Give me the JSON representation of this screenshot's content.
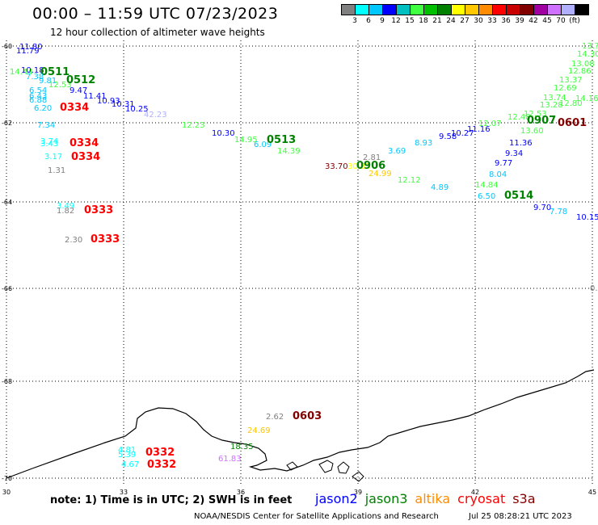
{
  "header": {
    "title": "00:00 – 11:59 UTC 07/23/2023",
    "subtitle": "12 hour collection of altimeter wave heights"
  },
  "legend": {
    "colors": [
      "#808080",
      "#00ffff",
      "#00c8ff",
      "#0000ff",
      "#00c0c0",
      "#40ff40",
      "#00c000",
      "#008000",
      "#ffff00",
      "#ffc800",
      "#ff8c00",
      "#ff0000",
      "#c80000",
      "#800000",
      "#a000a0",
      "#d070ff",
      "#b0b0ff",
      "#000000"
    ],
    "labels": [
      "3",
      "6",
      "9",
      "12",
      "15",
      "18",
      "21",
      "24",
      "27",
      "30",
      "33",
      "36",
      "39",
      "42",
      "45",
      "70",
      "(ft)"
    ]
  },
  "axes": {
    "lat_labels": [
      "-60",
      "-62",
      "-64",
      "-66",
      "-68",
      "-70"
    ],
    "lon_labels": [
      "30",
      "33",
      "36",
      "39",
      "42",
      "45"
    ]
  },
  "observations": [
    {
      "text": "11.80",
      "color": "#0000ff"
    },
    {
      "text": "11.79",
      "color": "#0000ff"
    },
    {
      "text": "14.44",
      "color": "#40ff40"
    },
    {
      "text": "10.18",
      "color": "#0000ff"
    },
    {
      "text": "0511",
      "color": "#008000",
      "bold": true
    },
    {
      "text": "7.38",
      "color": "#00c8ff"
    },
    {
      "text": "9.81",
      "color": "#00c8ff"
    },
    {
      "text": "12.53",
      "color": "#40ff40"
    },
    {
      "text": "0512",
      "color": "#008000",
      "bold": true
    },
    {
      "text": "6.54",
      "color": "#00c8ff"
    },
    {
      "text": "9.47",
      "color": "#0000ff"
    },
    {
      "text": "6.43",
      "color": "#00c8ff"
    },
    {
      "text": "11.41",
      "color": "#0000ff"
    },
    {
      "text": "6.88",
      "color": "#00c8ff"
    },
    {
      "text": "10.93",
      "color": "#0000ff"
    },
    {
      "text": "10.31",
      "color": "#0000ff"
    },
    {
      "text": "6.20",
      "color": "#00c8ff"
    },
    {
      "text": "0334",
      "color": "#ff0000",
      "bold": true
    },
    {
      "text": "10.25",
      "color": "#0000ff"
    },
    {
      "text": "42.23",
      "color": "#b0b0ff"
    },
    {
      "text": "7.34",
      "color": "#00c8ff"
    },
    {
      "text": "12.23",
      "color": "#40ff40"
    },
    {
      "text": "10.30",
      "color": "#0000ff"
    },
    {
      "text": "14.95",
      "color": "#40ff40"
    },
    {
      "text": "6.09",
      "color": "#00c8ff"
    },
    {
      "text": "0513",
      "color": "#008000",
      "bold": true
    },
    {
      "text": "14.39",
      "color": "#40ff40"
    },
    {
      "text": "3.74",
      "color": "#00ffff"
    },
    {
      "text": "3.43",
      "color": "#00ffff"
    },
    {
      "text": "0334",
      "color": "#ff0000",
      "bold": true
    },
    {
      "text": "3.17",
      "color": "#00ffff"
    },
    {
      "text": "0334",
      "color": "#ff0000",
      "bold": true
    },
    {
      "text": "1.31",
      "color": "#808080"
    },
    {
      "text": "2.81",
      "color": "#808080"
    },
    {
      "text": "33.70",
      "color": "#800000"
    },
    {
      "text": "30.85",
      "color": "#ffff00"
    },
    {
      "text": "0906",
      "color": "#008000",
      "bold": true
    },
    {
      "text": "24.99",
      "color": "#ffc800"
    },
    {
      "text": "3.69",
      "color": "#00c8ff"
    },
    {
      "text": "8.93",
      "color": "#00c8ff"
    },
    {
      "text": "9.58",
      "color": "#0000ff"
    },
    {
      "text": "10.27",
      "color": "#0000ff"
    },
    {
      "text": "11.16",
      "color": "#0000ff"
    },
    {
      "text": "12.12",
      "color": "#40ff40"
    },
    {
      "text": "4.89",
      "color": "#00c8ff"
    },
    {
      "text": "12.07",
      "color": "#40ff40"
    },
    {
      "text": "12.48",
      "color": "#40ff40"
    },
    {
      "text": "12.53",
      "color": "#40ff40"
    },
    {
      "text": "0907",
      "color": "#008000",
      "bold": true
    },
    {
      "text": "0601",
      "color": "#800000",
      "bold": true
    },
    {
      "text": "13.60",
      "color": "#40ff40"
    },
    {
      "text": "11.36",
      "color": "#0000ff"
    },
    {
      "text": "9.34",
      "color": "#0000ff"
    },
    {
      "text": "9.77",
      "color": "#0000ff"
    },
    {
      "text": "8.04",
      "color": "#00c8ff"
    },
    {
      "text": "14.84",
      "color": "#40ff40"
    },
    {
      "text": "6.50",
      "color": "#00c8ff"
    },
    {
      "text": "0514",
      "color": "#008000",
      "bold": true
    },
    {
      "text": "9.70",
      "color": "#0000ff"
    },
    {
      "text": "7.78",
      "color": "#00c8ff"
    },
    {
      "text": "10.15",
      "color": "#0000ff"
    },
    {
      "text": "13.74",
      "color": "#40ff40"
    },
    {
      "text": "13.28",
      "color": "#40ff40"
    },
    {
      "text": "12.80",
      "color": "#40ff40"
    },
    {
      "text": "12.69",
      "color": "#40ff40"
    },
    {
      "text": "13.37",
      "color": "#40ff40"
    },
    {
      "text": "12.86",
      "color": "#40ff40"
    },
    {
      "text": "13.08",
      "color": "#40ff40"
    },
    {
      "text": "14.30",
      "color": "#40ff40"
    },
    {
      "text": "13.?",
      "color": "#40ff40"
    },
    {
      "text": "14.16",
      "color": "#40ff40"
    },
    {
      "text": "3.49",
      "color": "#00ffff"
    },
    {
      "text": "1.82",
      "color": "#808080"
    },
    {
      "text": "0333",
      "color": "#ff0000",
      "bold": true
    },
    {
      "text": "2.30",
      "color": "#808080"
    },
    {
      "text": "0333",
      "color": "#ff0000",
      "bold": true
    },
    {
      "text": "2.62",
      "color": "#808080"
    },
    {
      "text": "0603",
      "color": "#800000",
      "bold": true
    },
    {
      "text": "24.69",
      "color": "#ffc800"
    },
    {
      "text": "18.35",
      "color": "#008000"
    },
    {
      "text": "61.83",
      "color": "#d070ff"
    },
    {
      "text": "4.81",
      "color": "#00ffff"
    },
    {
      "text": "5.39",
      "color": "#00ffff"
    },
    {
      "text": "0332",
      "color": "#ff0000",
      "bold": true
    },
    {
      "text": "4.67",
      "color": "#00ffff"
    },
    {
      "text": "0332",
      "color": "#ff0000",
      "bold": true
    },
    {
      "text": "0.",
      "color": "#808080"
    }
  ],
  "footer": {
    "note": "note:  1) Time is in UTC; 2) SWH is in feet",
    "satellites": [
      {
        "name": "jason2",
        "color": "#0000ff"
      },
      {
        "name": "jason3",
        "color": "#008000"
      },
      {
        "name": "altika",
        "color": "#ff8c00"
      },
      {
        "name": "cryosat",
        "color": "#ff0000"
      },
      {
        "name": "s3a",
        "color": "#800000"
      }
    ],
    "credit": "NOAA/NESDIS Center for Satellite Applications and Research",
    "date": "Jul 25 08:28:21 UTC 2023"
  }
}
